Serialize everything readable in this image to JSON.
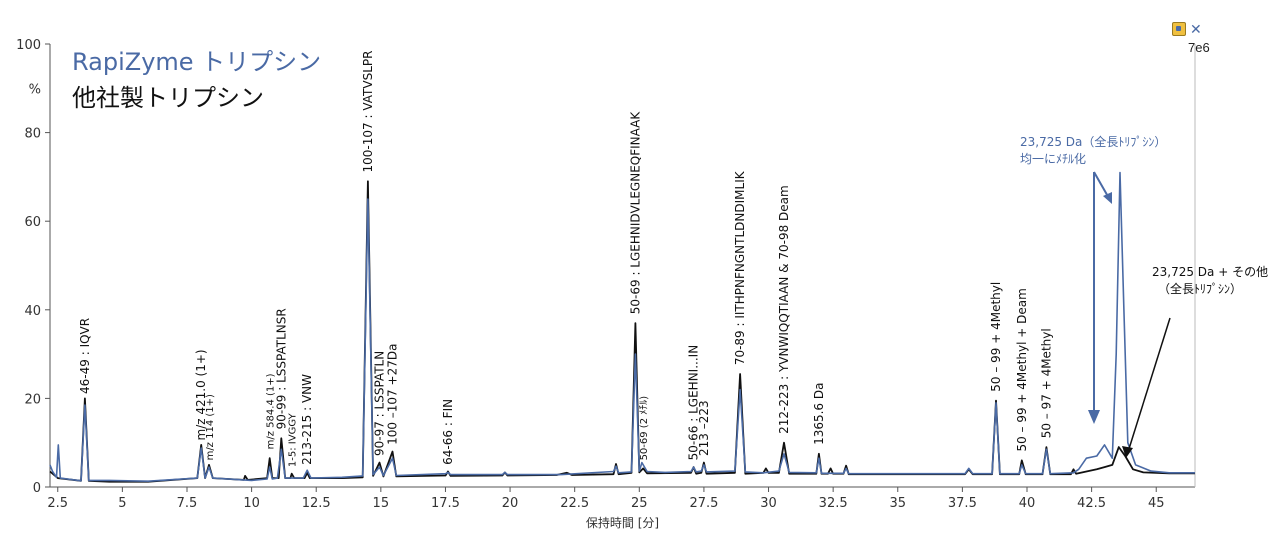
{
  "legend": {
    "series1": "RapiZyme トリプシン",
    "series2": "他社製トリプシン"
  },
  "scale_label": "7e6",
  "toolbar": {
    "close_glyph": "✕"
  },
  "colors": {
    "series1": "#4a6aa5",
    "series2": "#111111"
  },
  "chart_data": {
    "type": "line",
    "title": "",
    "xlabel": "保持時間 [分]",
    "ylabel": "%",
    "xlim": [
      2.2,
      46.5
    ],
    "ylim": [
      0,
      100
    ],
    "x_ticks": [
      2.5,
      5,
      7.5,
      10,
      12.5,
      15,
      17.5,
      20,
      22.5,
      25,
      27.5,
      30,
      32.5,
      35,
      37.5,
      40,
      42.5,
      45
    ],
    "x_tick_labels": [
      "2.5",
      "5",
      "7.5",
      "10",
      "12.5",
      "15",
      "17.5",
      "20",
      "22.5",
      "25",
      "27.5",
      "30",
      "32.5",
      "35",
      "37.5",
      "40",
      "42.5",
      "45"
    ],
    "y_ticks": [
      0,
      20,
      40,
      60,
      80,
      100
    ],
    "y_tick_labels": [
      "0",
      "20",
      "40",
      "60",
      "80",
      "100"
    ],
    "series": [
      {
        "name": "RapiZyme トリプシン",
        "color": "#4a6aa5",
        "points": [
          [
            2.2,
            5
          ],
          [
            2.3,
            3.5
          ],
          [
            2.45,
            2.2
          ],
          [
            2.52,
            9.5
          ],
          [
            2.6,
            2
          ],
          [
            3.4,
            1.4
          ],
          [
            3.55,
            18.5
          ],
          [
            3.7,
            1.5
          ],
          [
            4.5,
            1.5
          ],
          [
            6,
            1.3
          ],
          [
            7.9,
            2
          ],
          [
            8.05,
            8.8
          ],
          [
            8.2,
            2
          ],
          [
            8.35,
            4.5
          ],
          [
            8.5,
            2
          ],
          [
            10,
            1.5
          ],
          [
            10.6,
            1.8
          ],
          [
            10.7,
            4.5
          ],
          [
            10.8,
            1.8
          ],
          [
            11,
            2
          ],
          [
            11.15,
            8.5
          ],
          [
            11.3,
            2
          ],
          [
            12,
            2
          ],
          [
            12.15,
            3.8
          ],
          [
            12.3,
            2
          ],
          [
            13.5,
            2.2
          ],
          [
            14.3,
            2.5
          ],
          [
            14.5,
            65
          ],
          [
            14.7,
            2.8
          ],
          [
            14.95,
            4.5
          ],
          [
            15.1,
            2.6
          ],
          [
            15.45,
            6.5
          ],
          [
            15.6,
            2.6
          ],
          [
            17.5,
            3
          ],
          [
            17.6,
            3.3
          ],
          [
            17.7,
            2.8
          ],
          [
            19.7,
            2.8
          ],
          [
            19.8,
            3.3
          ],
          [
            19.9,
            2.8
          ],
          [
            22,
            2.8
          ],
          [
            24,
            3.5
          ],
          [
            24.1,
            4.7
          ],
          [
            24.2,
            3.2
          ],
          [
            24.7,
            3.4
          ],
          [
            24.85,
            30
          ],
          [
            25,
            3.6
          ],
          [
            25.1,
            5.5
          ],
          [
            25.3,
            3.5
          ],
          [
            26,
            3.3
          ],
          [
            27,
            3.5
          ],
          [
            27.1,
            4.5
          ],
          [
            27.2,
            3.4
          ],
          [
            27.4,
            3.6
          ],
          [
            27.5,
            5
          ],
          [
            27.6,
            3.4
          ],
          [
            28.7,
            3.6
          ],
          [
            28.9,
            22
          ],
          [
            29.1,
            3.4
          ],
          [
            29.8,
            3.2
          ],
          [
            30.4,
            3.6
          ],
          [
            30.6,
            7.5
          ],
          [
            30.8,
            3.3
          ],
          [
            31.85,
            3.2
          ],
          [
            31.95,
            6.5
          ],
          [
            32.05,
            3.1
          ],
          [
            32.9,
            3.1
          ],
          [
            33,
            4.2
          ],
          [
            33.1,
            3
          ],
          [
            35,
            3
          ],
          [
            37.6,
            3
          ],
          [
            37.75,
            4.2
          ],
          [
            37.9,
            3
          ],
          [
            38.65,
            3
          ],
          [
            38.8,
            19
          ],
          [
            38.95,
            3
          ],
          [
            39.7,
            3
          ],
          [
            39.8,
            5
          ],
          [
            39.95,
            3
          ],
          [
            40.6,
            3
          ],
          [
            40.75,
            8.5
          ],
          [
            40.9,
            3
          ],
          [
            41.8,
            3.2
          ],
          [
            42,
            4
          ],
          [
            42.3,
            6.5
          ],
          [
            42.7,
            7
          ],
          [
            43,
            9.5
          ],
          [
            43.3,
            6.5
          ],
          [
            43.45,
            30
          ],
          [
            43.6,
            71
          ],
          [
            43.75,
            40
          ],
          [
            43.9,
            10
          ],
          [
            44.2,
            5
          ],
          [
            44.8,
            3.6
          ],
          [
            45.5,
            3.2
          ],
          [
            46.5,
            3.2
          ]
        ]
      },
      {
        "name": "他社製トリプシン",
        "color": "#111111",
        "points": [
          [
            2.2,
            3.5
          ],
          [
            2.5,
            2
          ],
          [
            3.4,
            1.4
          ],
          [
            3.55,
            20
          ],
          [
            3.7,
            1.4
          ],
          [
            4.5,
            1.2
          ],
          [
            6,
            1.2
          ],
          [
            7.9,
            2
          ],
          [
            8.05,
            9.5
          ],
          [
            8.2,
            2
          ],
          [
            8.35,
            5
          ],
          [
            8.5,
            2
          ],
          [
            9.7,
            1.6
          ],
          [
            9.75,
            2.5
          ],
          [
            9.85,
            1.6
          ],
          [
            10.6,
            2
          ],
          [
            10.7,
            6.5
          ],
          [
            10.8,
            2
          ],
          [
            11.05,
            2
          ],
          [
            11.15,
            11
          ],
          [
            11.3,
            2
          ],
          [
            11.5,
            2
          ],
          [
            11.55,
            3
          ],
          [
            11.65,
            2
          ],
          [
            12.05,
            2
          ],
          [
            12.15,
            3.2
          ],
          [
            12.25,
            2
          ],
          [
            13.5,
            2
          ],
          [
            14.3,
            2.2
          ],
          [
            14.5,
            69
          ],
          [
            14.7,
            2.5
          ],
          [
            14.95,
            5.5
          ],
          [
            15.1,
            2.4
          ],
          [
            15.45,
            8
          ],
          [
            15.6,
            2.4
          ],
          [
            17.5,
            2.6
          ],
          [
            17.6,
            3.5
          ],
          [
            17.7,
            2.5
          ],
          [
            19.7,
            2.6
          ],
          [
            19.8,
            3.3
          ],
          [
            19.9,
            2.6
          ],
          [
            21.8,
            2.7
          ],
          [
            22.2,
            3.2
          ],
          [
            22.4,
            2.7
          ],
          [
            24,
            2.9
          ],
          [
            24.1,
            5.2
          ],
          [
            24.2,
            2.9
          ],
          [
            24.7,
            3.2
          ],
          [
            24.85,
            37
          ],
          [
            25,
            3.3
          ],
          [
            25.15,
            4.2
          ],
          [
            25.3,
            3.1
          ],
          [
            27,
            3.2
          ],
          [
            27.1,
            4.5
          ],
          [
            27.2,
            3
          ],
          [
            27.4,
            3.2
          ],
          [
            27.5,
            5.5
          ],
          [
            27.6,
            3
          ],
          [
            28.7,
            3.2
          ],
          [
            28.9,
            25.5
          ],
          [
            29.1,
            3
          ],
          [
            29.8,
            3.2
          ],
          [
            29.9,
            4.2
          ],
          [
            30,
            3.2
          ],
          [
            30.4,
            3.2
          ],
          [
            30.6,
            10
          ],
          [
            30.8,
            3
          ],
          [
            31.85,
            3
          ],
          [
            31.95,
            7.5
          ],
          [
            32.05,
            3
          ],
          [
            32.3,
            3
          ],
          [
            32.4,
            4.2
          ],
          [
            32.5,
            3
          ],
          [
            32.9,
            3
          ],
          [
            33,
            4.8
          ],
          [
            33.1,
            2.9
          ],
          [
            35,
            2.9
          ],
          [
            37.6,
            2.9
          ],
          [
            37.75,
            4
          ],
          [
            37.9,
            2.9
          ],
          [
            38.65,
            2.9
          ],
          [
            38.8,
            19.5
          ],
          [
            38.95,
            2.9
          ],
          [
            39.7,
            2.9
          ],
          [
            39.8,
            6
          ],
          [
            39.95,
            2.9
          ],
          [
            40.6,
            2.9
          ],
          [
            40.75,
            9
          ],
          [
            40.9,
            2.9
          ],
          [
            41.7,
            2.9
          ],
          [
            41.8,
            4
          ],
          [
            41.9,
            3
          ],
          [
            42.3,
            3.5
          ],
          [
            42.7,
            4
          ],
          [
            43,
            4.5
          ],
          [
            43.3,
            5
          ],
          [
            43.55,
            9
          ],
          [
            43.8,
            7
          ],
          [
            44.1,
            4
          ],
          [
            44.5,
            3.3
          ],
          [
            45.5,
            3.1
          ],
          [
            46.5,
            3.1
          ]
        ]
      }
    ],
    "annotations": [
      {
        "text": "46-49 : IQVR",
        "x": 3.55,
        "y": 21,
        "rotate": true
      },
      {
        "text": "m/z 421.0 (1+)",
        "x": 8.05,
        "y": 10.5,
        "rotate": true
      },
      {
        "text": "m/z 114 (1+)",
        "x": 8.35,
        "y": 6,
        "rotate": true,
        "small": true
      },
      {
        "text": "m/z 584.4 (1+)",
        "x": 10.7,
        "y": 8.5,
        "rotate": true,
        "small": true
      },
      {
        "text": "90-99 : LSSPATLNSR",
        "x": 11.15,
        "y": 13,
        "rotate": true
      },
      {
        "text": "1-5: IVGGY",
        "x": 11.55,
        "y": 4.5,
        "rotate": true,
        "small": true
      },
      {
        "text": "213-215 : VNW",
        "x": 12.15,
        "y": 5,
        "rotate": true
      },
      {
        "text": "100-107 : VATVSLPR",
        "x": 14.5,
        "y": 71,
        "rotate": true
      },
      {
        "text": "90-97 : LSSPATLN",
        "x": 14.95,
        "y": 7,
        "rotate": true
      },
      {
        "text": "100 –107 +27Da",
        "x": 15.45,
        "y": 9.5,
        "rotate": true
      },
      {
        "text": "64-66 : FIN",
        "x": 17.6,
        "y": 5,
        "rotate": true
      },
      {
        "text": "50-69 : LGEHNIDVLEGNEQFINAAK",
        "x": 24.85,
        "y": 39,
        "rotate": true
      },
      {
        "text": "50-69 (2 ﾒﾁﾙ)",
        "x": 25.15,
        "y": 6,
        "rotate": true,
        "small": true
      },
      {
        "text": "50-66 : LGEHNI...IN",
        "x": 27.1,
        "y": 6,
        "rotate": true
      },
      {
        "text": "213 –223",
        "x": 27.5,
        "y": 7,
        "rotate": true
      },
      {
        "text": "70-89 : IITHPNFNGNTLDNDIMLIK",
        "x": 28.9,
        "y": 27.5,
        "rotate": true
      },
      {
        "text": "212-223 : YVNWIQQTIAAN & 70-98 Deam",
        "x": 30.6,
        "y": 12,
        "rotate": true
      },
      {
        "text": "1365.6 Da",
        "x": 31.95,
        "y": 9.5,
        "rotate": true
      },
      {
        "text": "50 – 99 + 4Methyl",
        "x": 38.8,
        "y": 21.5,
        "rotate": true
      },
      {
        "text": "50 – 99 + 4Methyl + Deam",
        "x": 39.8,
        "y": 8,
        "rotate": true
      },
      {
        "text": "50 – 97 + 4Methyl",
        "x": 40.75,
        "y": 11,
        "rotate": true
      }
    ],
    "callouts": [
      {
        "text": "23,725 Da（全長ﾄﾘﾌﾟｼﾝ）",
        "color": "#4a6aa5"
      },
      {
        "text": "均一にﾒﾁﾙ化",
        "color": "#4a6aa5"
      },
      {
        "text": "23,725 Da + その他",
        "color": "#111111"
      },
      {
        "text": "（全長ﾄﾘﾌﾟｼﾝ）",
        "color": "#111111"
      }
    ]
  }
}
